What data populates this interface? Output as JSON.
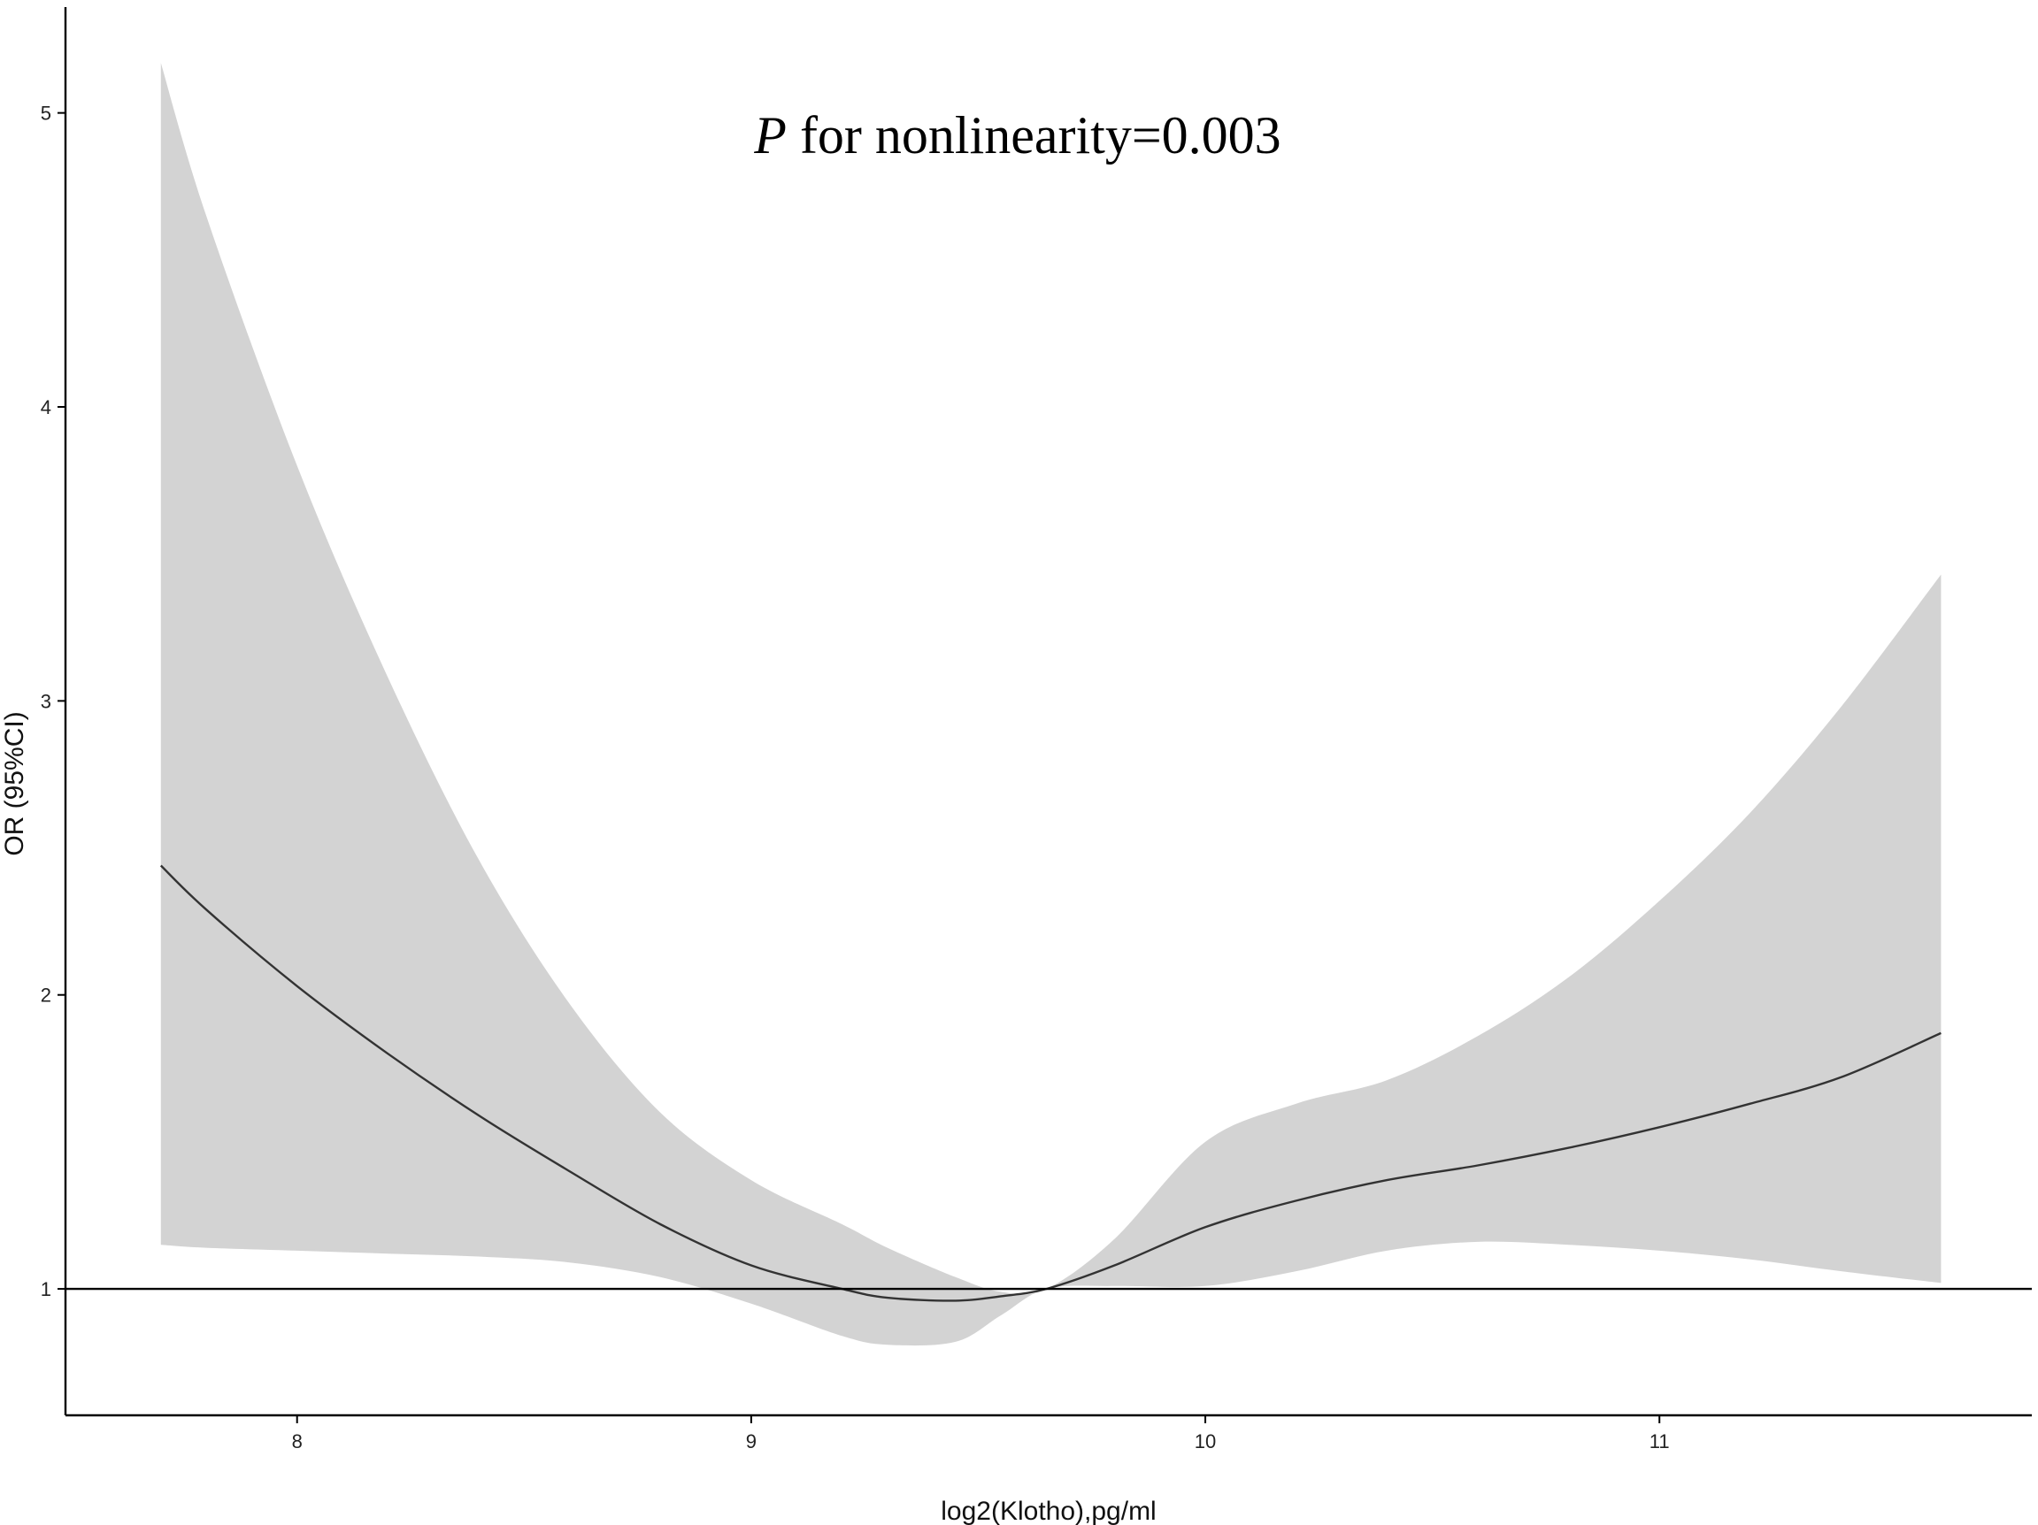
{
  "chart_data": {
    "type": "line",
    "title": "",
    "xlabel": "log2(Klotho),pg/ml",
    "ylabel": "OR (95%CI)",
    "annotation": {
      "p_symbol": "P",
      "text": " for nonlinearity=0.003"
    },
    "xlim": [
      7.49,
      11.82
    ],
    "ylim": [
      0.57,
      5.36
    ],
    "x_ticks": [
      8,
      9,
      10,
      11
    ],
    "y_ticks": [
      1,
      2,
      3,
      4,
      5
    ],
    "x_tick_labels": [
      "8",
      "9",
      "10",
      "11"
    ],
    "y_tick_labels": [
      "1",
      "2",
      "3",
      "4",
      "5"
    ],
    "reference_line": 1,
    "grid": false,
    "colors": {
      "line": "#333333",
      "band": "#d3d3d3",
      "axis": "#000000",
      "reference": "#000000"
    },
    "series": [
      {
        "x": [
          7.7,
          7.8,
          8.0,
          8.2,
          8.4,
          8.6,
          8.8,
          9.0,
          9.2,
          9.3,
          9.45,
          9.55,
          9.65,
          9.8,
          10.0,
          10.2,
          10.4,
          10.6,
          10.8,
          11.0,
          11.2,
          11.4,
          11.62
        ],
        "y": [
          2.44,
          2.29,
          2.03,
          1.8,
          1.59,
          1.4,
          1.22,
          1.08,
          1.0,
          0.97,
          0.96,
          0.975,
          1.0,
          1.08,
          1.21,
          1.3,
          1.37,
          1.42,
          1.48,
          1.55,
          1.63,
          1.72,
          1.87
        ],
        "lower": [
          1.15,
          1.14,
          1.13,
          1.12,
          1.11,
          1.09,
          1.04,
          0.95,
          0.84,
          0.81,
          0.82,
          0.91,
          1.0,
          1.01,
          1.01,
          1.06,
          1.13,
          1.16,
          1.15,
          1.13,
          1.1,
          1.06,
          1.02
        ],
        "upper": [
          5.17,
          4.65,
          3.8,
          3.08,
          2.46,
          1.97,
          1.6,
          1.37,
          1.22,
          1.14,
          1.04,
          0.99,
          1.0,
          1.17,
          1.5,
          1.63,
          1.71,
          1.86,
          2.06,
          2.32,
          2.62,
          2.98,
          3.43
        ]
      }
    ]
  }
}
